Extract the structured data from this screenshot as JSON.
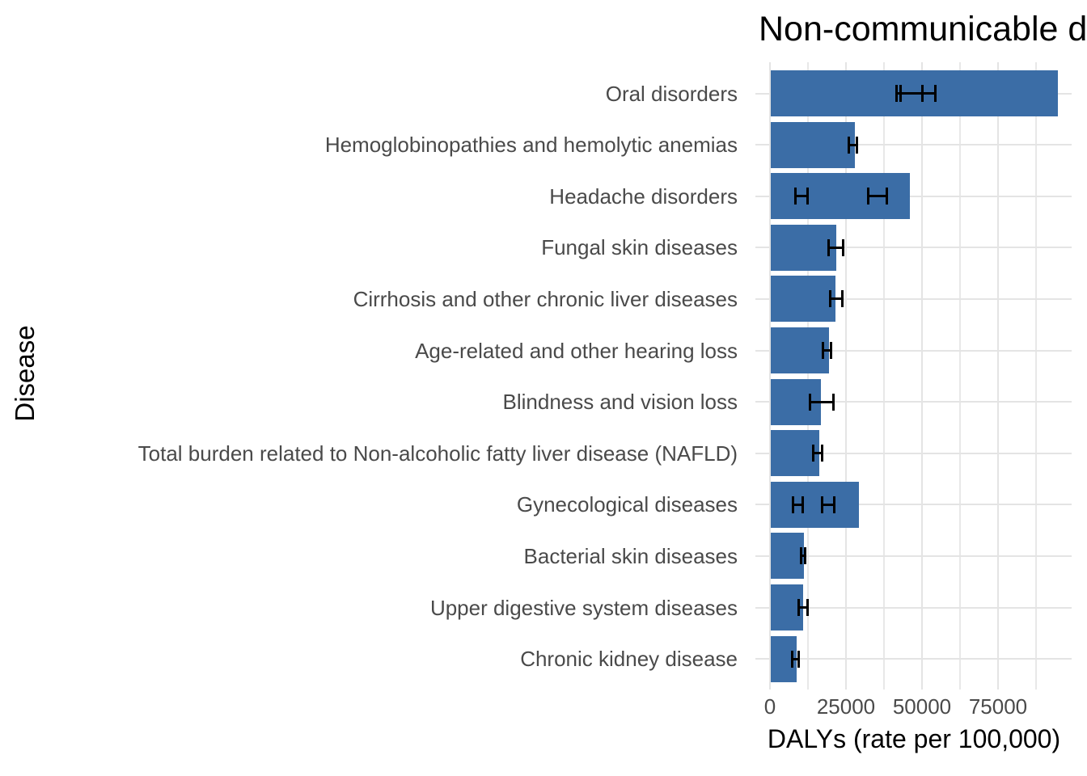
{
  "chart_data": {
    "type": "bar",
    "orientation": "horizontal",
    "title": "Non-communicable diseases",
    "xlabel": "DALYs (rate per 100,000)",
    "ylabel": "Disease",
    "xlim": [
      0,
      100000
    ],
    "grid": true,
    "legend": false,
    "x_major_ticks": [
      0,
      25000,
      50000,
      75000
    ],
    "x_tick_labels": [
      "0",
      "25000",
      "50000",
      "75000"
    ],
    "x_minor_gridlines": [
      12500,
      37500,
      62500,
      87500
    ],
    "bar_color": "#3b6da6",
    "error_bar_color": "#000000",
    "grid_color": "#e4e4e4",
    "axis_text_color": "#4a4a4a",
    "title_color": "#000000",
    "rows": [
      {
        "label": "Oral disorders",
        "value": 94400,
        "error_bars": [
          [
            41500,
            50000
          ],
          [
            43000,
            54500
          ]
        ]
      },
      {
        "label": "Hemoglobinopathies and hemolytic anemias",
        "value": 27700,
        "error_bars": [
          [
            26000,
            28700
          ]
        ]
      },
      {
        "label": "Headache disorders",
        "value": 45700,
        "error_bars": [
          [
            8250,
            12250
          ],
          [
            32200,
            38550
          ]
        ]
      },
      {
        "label": "Fungal skin diseases",
        "value": 21550,
        "error_bars": [
          [
            19400,
            24200
          ]
        ]
      },
      {
        "label": "Cirrhosis and other chronic liver diseases",
        "value": 21250,
        "error_bars": [
          [
            19850,
            23850
          ]
        ]
      },
      {
        "label": "Age-related and other hearing loss",
        "value": 19150,
        "error_bars": [
          [
            17500,
            20100
          ]
        ]
      },
      {
        "label": "Blindness and vision loss",
        "value": 16500,
        "error_bars": [
          [
            13200,
            20750
          ]
        ]
      },
      {
        "label": "Total burden related to Non-alcoholic fatty liver disease (NAFLD)",
        "value": 15950,
        "error_bars": [
          [
            14100,
            17200
          ]
        ]
      },
      {
        "label": "Gynecological diseases",
        "value": 29000,
        "error_bars": [
          [
            7700,
            10900
          ],
          [
            17200,
            21200
          ]
        ]
      },
      {
        "label": "Bacterial skin diseases",
        "value": 10900,
        "error_bars": [
          [
            10350,
            11700
          ]
        ]
      },
      {
        "label": "Upper digestive system diseases",
        "value": 10700,
        "error_bars": [
          [
            9500,
            12300
          ]
        ]
      },
      {
        "label": "Chronic kidney disease",
        "value": 8500,
        "error_bars": [
          [
            7400,
            9550
          ]
        ]
      }
    ]
  }
}
